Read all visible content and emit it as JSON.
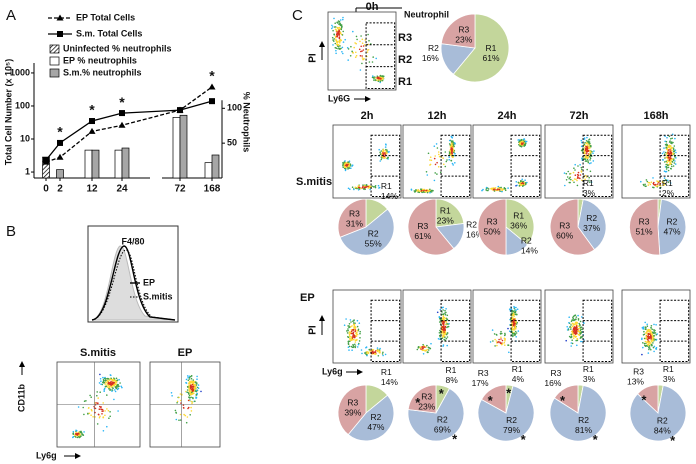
{
  "chart_data": [
    {
      "type": "combo",
      "panel": "A",
      "categories": [
        "0",
        "2",
        "12",
        "24",
        "72",
        "168"
      ],
      "ylabel": "Total Cell Number (x 10⁵)",
      "y2label": "% Neutrophils",
      "log_y": true,
      "ylim": [
        0.66,
        2000
      ],
      "yticks": [
        1,
        10,
        100,
        1000
      ],
      "y2lim": [
        0,
        165
      ],
      "y2ticks": [
        50,
        100
      ],
      "series": [
        {
          "name": "EP Total Cells",
          "kind": "line",
          "dash": true,
          "marker": "triangle",
          "color": "#000000",
          "values": [
            2,
            2.8,
            17,
            26,
            75,
            375
          ]
        },
        {
          "name": "S.m. Total Cells",
          "kind": "line",
          "dash": false,
          "marker": "square",
          "color": "#000000",
          "values": [
            2.3,
            7.6,
            35,
            61,
            75,
            140
          ]
        },
        {
          "name": "Uninfected % neutrophils",
          "kind": "bar",
          "axis": "y2",
          "hatch": true,
          "color": "#ffffff",
          "values": [
            30,
            null,
            null,
            null,
            null,
            null
          ]
        },
        {
          "name": "EP % neutrophils",
          "kind": "bar",
          "axis": "y2",
          "hatch": false,
          "color": "#ffffff",
          "values": [
            null,
            null,
            40,
            40,
            87,
            22
          ]
        },
        {
          "name": "S.m.% neutrophils",
          "kind": "bar",
          "axis": "y2",
          "hatch": false,
          "color": "#a6a6a6",
          "values": [
            null,
            12,
            40,
            43,
            90,
            33
          ]
        }
      ],
      "annotations": [
        {
          "text": "*",
          "x": "2"
        },
        {
          "text": "*",
          "x": "12"
        },
        {
          "text": "*",
          "x": "24"
        },
        {
          "text": "*",
          "x": "168"
        }
      ]
    },
    {
      "type": "pie",
      "categories": [
        "R1",
        "R2",
        "R3"
      ],
      "values": [
        61,
        16,
        23
      ],
      "value_labels": [
        "61%",
        "16%",
        "23%"
      ],
      "colors": [
        "#c3d69b",
        "#a8bcd8",
        "#d8a3a3"
      ],
      "annotations": []
    },
    {
      "type": "pie",
      "categories": [
        "R1",
        "R2",
        "R3"
      ],
      "values": [
        14,
        55,
        31
      ],
      "value_labels": [
        "14%",
        "55%",
        "31%"
      ],
      "colors": [
        "#c3d69b",
        "#a8bcd8",
        "#d8a3a3"
      ],
      "annotations": []
    },
    {
      "type": "pie",
      "categories": [
        "R1",
        "R2",
        "R3"
      ],
      "values": [
        23,
        16,
        61
      ],
      "value_labels": [
        "23%",
        "16%",
        "61%"
      ],
      "colors": [
        "#c3d69b",
        "#a8bcd8",
        "#d8a3a3"
      ],
      "annotations": []
    },
    {
      "type": "pie",
      "categories": [
        "R1",
        "R2",
        "R3"
      ],
      "values": [
        36,
        14,
        50
      ],
      "value_labels": [
        "36%",
        "14%",
        "50%"
      ],
      "colors": [
        "#c3d69b",
        "#a8bcd8",
        "#d8a3a3"
      ],
      "annotations": []
    },
    {
      "type": "pie",
      "categories": [
        "R1",
        "R2",
        "R3"
      ],
      "values": [
        3,
        37,
        60
      ],
      "value_labels": [
        "3%",
        "37%",
        "60%"
      ],
      "colors": [
        "#c3d69b",
        "#a8bcd8",
        "#d8a3a3"
      ],
      "annotations": []
    },
    {
      "type": "pie",
      "categories": [
        "R1",
        "R2",
        "R3"
      ],
      "values": [
        2,
        47,
        51
      ],
      "value_labels": [
        "2%",
        "47%",
        "51%"
      ],
      "colors": [
        "#c3d69b",
        "#a8bcd8",
        "#d8a3a3"
      ],
      "annotations": []
    },
    {
      "type": "pie",
      "categories": [
        "R1",
        "R2",
        "R3"
      ],
      "values": [
        14,
        47,
        39
      ],
      "value_labels": [
        "14%",
        "47%",
        "39%"
      ],
      "colors": [
        "#c3d69b",
        "#a8bcd8",
        "#d8a3a3"
      ],
      "annotations": []
    },
    {
      "type": "pie",
      "categories": [
        "R1",
        "R2",
        "R3"
      ],
      "values": [
        8,
        69,
        23
      ],
      "value_labels": [
        "8%",
        "69%",
        "23%"
      ],
      "colors": [
        "#c3d69b",
        "#a8bcd8",
        "#d8a3a3"
      ],
      "annotations": [
        "*",
        "*",
        "*"
      ]
    },
    {
      "type": "pie",
      "categories": [
        "R1",
        "R2",
        "R3"
      ],
      "values": [
        4,
        79,
        17
      ],
      "value_labels": [
        "4%",
        "79%",
        "17%"
      ],
      "colors": [
        "#c3d69b",
        "#a8bcd8",
        "#d8a3a3"
      ],
      "annotations": [
        "*",
        "*",
        "*"
      ]
    },
    {
      "type": "pie",
      "categories": [
        "R1",
        "R2",
        "R3"
      ],
      "values": [
        3,
        81,
        16
      ],
      "value_labels": [
        "3%",
        "81%",
        "16%"
      ],
      "colors": [
        "#c3d69b",
        "#a8bcd8",
        "#d8a3a3"
      ],
      "annotations": [
        "*",
        "*"
      ]
    },
    {
      "type": "pie",
      "categories": [
        "R1",
        "R2",
        "R3"
      ],
      "values": [
        3,
        84,
        13
      ],
      "value_labels": [
        "3%",
        "84%",
        "13%"
      ],
      "colors": [
        "#c3d69b",
        "#a8bcd8",
        "#d8a3a3"
      ],
      "annotations": [
        "*",
        "*"
      ]
    }
  ],
  "panel_b": {
    "label": "B",
    "histogram_title": "F4/80",
    "legend": [
      "EP",
      "S.mitis"
    ],
    "scatter_titles": [
      "S.mitis",
      "EP"
    ],
    "y_axis": "CD11b",
    "x_axis": "Ly6g"
  },
  "panel_c": {
    "label": "C",
    "time0": "0h",
    "gate_label": "Neutrophil",
    "gates": [
      "R3",
      "R2",
      "R1"
    ],
    "y_axis_0": "PI",
    "x_axis_0": "Ly6G",
    "times": [
      "2h",
      "12h",
      "24h",
      "72h",
      "168h"
    ],
    "rows": [
      "S.mitis",
      "EP"
    ],
    "y_axis": "PI",
    "x_axis": "Ly6g"
  }
}
